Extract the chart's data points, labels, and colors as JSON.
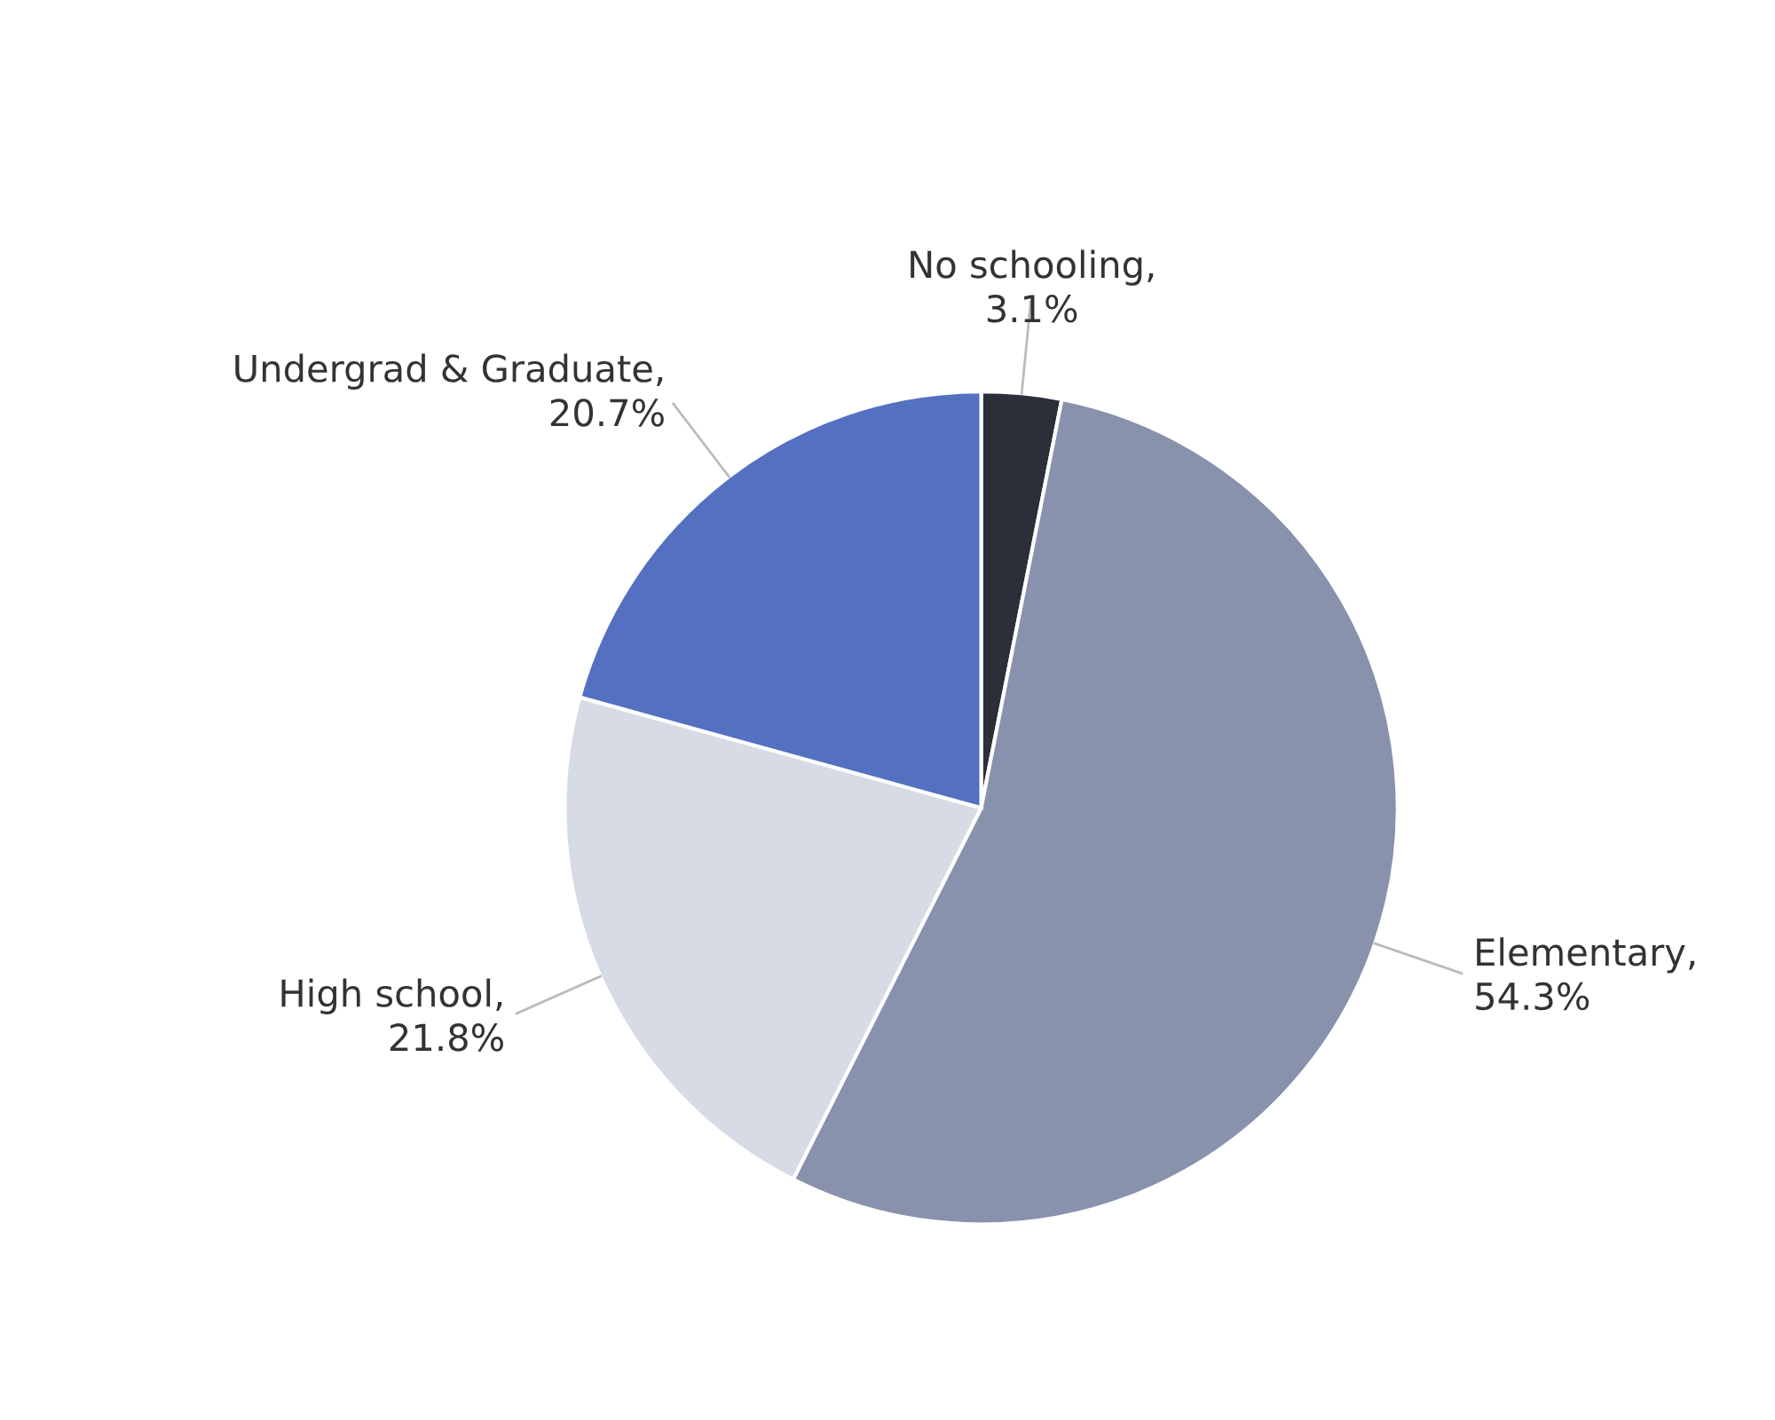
{
  "chart_data": {
    "type": "pie",
    "categories": [
      "No schooling",
      "Elementary",
      "High school",
      "Undergrad & Graduate"
    ],
    "values": [
      3.1,
      54.3,
      21.8,
      20.7
    ],
    "value_labels": [
      ", 3.1%",
      ", 54.3%",
      ", 21.8%",
      ", 20.7%"
    ],
    "colors": [
      "#2a2f3a",
      "#8892ad",
      "#d6dbe5",
      "#5470c1"
    ],
    "legend": false
  }
}
